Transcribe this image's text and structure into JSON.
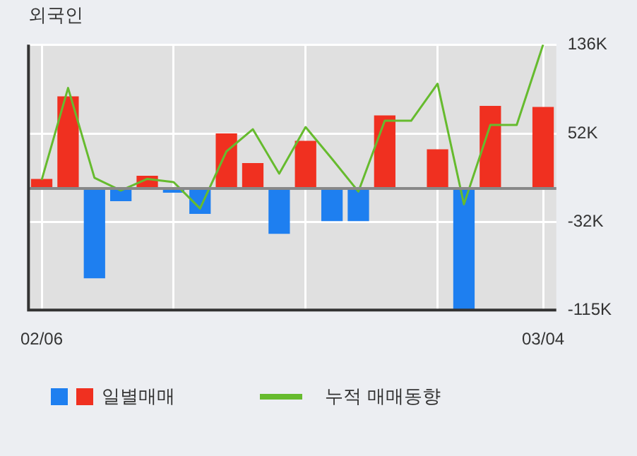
{
  "chart_data": {
    "type": "bar",
    "title": "외국인",
    "categories": [
      "02/06",
      null,
      null,
      null,
      null,
      null,
      null,
      null,
      null,
      null,
      null,
      null,
      null,
      null,
      null,
      null,
      null,
      null,
      null,
      "03/04"
    ],
    "series": [
      {
        "name": "일별매매",
        "colors": [
          "#f03020",
          "#f03020",
          "#1e7ff0",
          "#1e7ff0",
          "#f03020",
          "#1e7ff0",
          "#1e7ff0",
          "#f03020",
          "#f03020",
          "#1e7ff0",
          "#f03020",
          "#1e7ff0",
          "#1e7ff0",
          "#f03020",
          "#f03020",
          "#f03020",
          "#1e7ff0",
          "#f03020",
          "#f03020",
          "#f03020"
        ],
        "values": [
          9,
          87,
          -85,
          -12,
          12,
          -4,
          -24,
          52,
          24,
          -43,
          45,
          -31,
          -31,
          69,
          0,
          37,
          -115,
          78,
          0,
          77
        ]
      },
      {
        "name": "누적 매매동향",
        "type": "line",
        "color": "#66bb2e",
        "values": [
          8,
          95,
          10,
          -2,
          9,
          6,
          -19,
          35,
          56,
          14,
          58,
          28,
          -3,
          64,
          64,
          99,
          -15,
          60,
          60,
          136
        ]
      }
    ],
    "ylim": [
      -115,
      136
    ],
    "yticks": [
      {
        "value": 136,
        "label": "136K"
      },
      {
        "value": 52,
        "label": "52K"
      },
      {
        "value": -32,
        "label": "-32K"
      },
      {
        "value": -115,
        "label": "-115K"
      }
    ],
    "grid": true,
    "legend": "bottom",
    "marker": "none"
  }
}
